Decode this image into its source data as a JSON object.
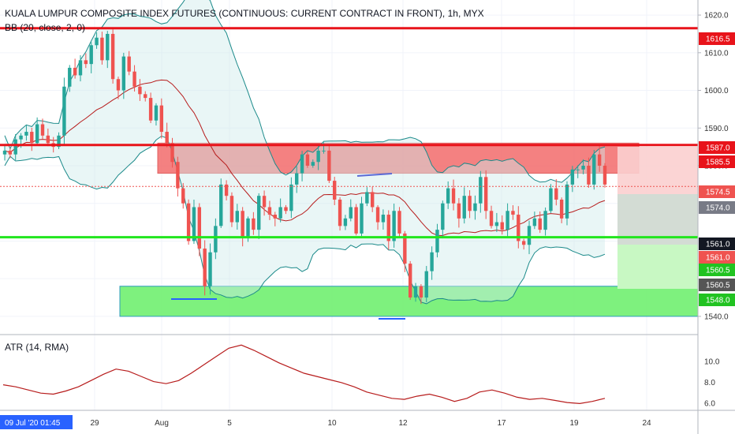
{
  "header": {
    "title": "KUALA LUMPUR COMPOSITE INDEX FUTURES (CONTINUOUS: CURRENT CONTRACT IN FRONT), 1h, MYX",
    "indicator": "BB (20, close, 2, 0)"
  },
  "atr_panel": {
    "label": "ATR (14, RMA)",
    "ticks": [
      "10.0",
      "8.0",
      "6.0"
    ],
    "values": [
      7.8,
      7.6,
      7.3,
      7.0,
      6.9,
      7.2,
      7.6,
      8.2,
      8.8,
      9.3,
      9.1,
      8.6,
      8.1,
      7.9,
      8.2,
      8.9,
      9.7,
      10.5,
      11.3,
      11.6,
      11.1,
      10.5,
      9.9,
      9.4,
      8.9,
      8.6,
      8.3,
      8.0,
      7.6,
      7.1,
      6.8,
      6.5,
      6.4,
      6.7,
      6.9,
      6.6,
      6.2,
      6.5,
      7.1,
      7.3,
      7.0,
      6.6,
      6.4,
      6.5,
      6.3,
      6.1,
      6.0,
      6.2,
      6.5
    ]
  },
  "colors": {
    "up": "#26a69a",
    "down": "#ef5350",
    "resistance": "#e8131a",
    "support": "#21e61d",
    "basis": "#b71c1c",
    "band": "#1b8a8a"
  },
  "price_axis": {
    "ticks": [
      "1620.0",
      "1610.0",
      "1600.0",
      "1590.0",
      "1580.0",
      "1540.0"
    ],
    "tags": [
      {
        "value": "1616.5",
        "color": "#e8131a"
      },
      {
        "value": "1587.0",
        "color": "#e8131a"
      },
      {
        "value": "1585.5",
        "color": "#e8131a"
      },
      {
        "value": "1574.5",
        "color": "#ef5350"
      },
      {
        "value": "1574.0",
        "color": "#787b86"
      },
      {
        "value": "1561.0",
        "color": "#131722"
      },
      {
        "value": "1561.0",
        "color": "#ef5350"
      },
      {
        "value": "1560.5",
        "color": "#21c321"
      },
      {
        "value": "1560.5",
        "color": "#555555"
      },
      {
        "value": "1548.0",
        "color": "#21c321"
      }
    ]
  },
  "time_axis": {
    "labels": [
      "29",
      "Aug",
      "5",
      "10",
      "12",
      "17",
      "19",
      "24"
    ],
    "cursor_label": "09 Jul '20   01:45"
  },
  "chart_data": {
    "type": "candlestick",
    "title": "KUALA LUMPUR COMPOSITE INDEX FUTURES (CONTINUOUS: CURRENT CONTRACT IN FRONT), 1h, MYX",
    "ylim": [
      1536,
      1624
    ],
    "levels": {
      "resistance": [
        1616.5,
        1585.5
      ],
      "support": 1561.0
    },
    "zones": {
      "resistance_zone": [
        1578,
        1586
      ],
      "support_zone": [
        1540,
        1548
      ]
    },
    "close_series": [
      1584,
      1583,
      1587,
      1588,
      1589,
      1586,
      1591,
      1588,
      1586,
      1585,
      1588,
      1601,
      1606,
      1604,
      1608,
      1607,
      1612,
      1614,
      1608,
      1615,
      1603,
      1600,
      1609,
      1605,
      1601,
      1599,
      1598,
      1592,
      1596,
      1589,
      1586,
      1581,
      1574,
      1570,
      1560,
      1569,
      1558,
      1548,
      1557,
      1564,
      1575,
      1572,
      1565,
      1568,
      1561,
      1566,
      1563,
      1572,
      1569,
      1567,
      1566,
      1569,
      1568,
      1575,
      1578,
      1583,
      1580,
      1581,
      1584,
      1584,
      1576,
      1571,
      1564,
      1566,
      1569,
      1562,
      1570,
      1573,
      1569,
      1565,
      1567,
      1560,
      1568,
      1562,
      1554,
      1545,
      1548,
      1545,
      1552,
      1557,
      1563,
      1570,
      1574,
      1570,
      1566,
      1572,
      1568,
      1570,
      1577,
      1568,
      1564,
      1565,
      1563,
      1568,
      1567,
      1560,
      1559,
      1564,
      1566,
      1563,
      1568,
      1574,
      1571,
      1566,
      1575,
      1579,
      1579,
      1580,
      1575,
      1583,
      1580,
      1575
    ]
  }
}
